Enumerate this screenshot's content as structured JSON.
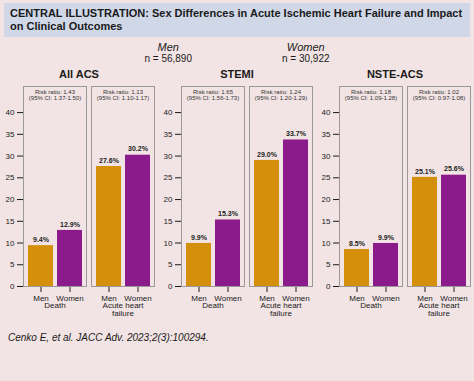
{
  "title": "CENTRAL ILLUSTRATION: Sex Differences in Acute Ischemic Heart Failure and Impact on Clinical Outcomes",
  "annotations": [
    "Men",
    "n = 56,890",
    "Women",
    "n = 30,922",
    "Cenko E, et al. JACC Adv. 2023;2(3):100294."
  ],
  "chart_data": [
    {
      "type": "bar",
      "title": "All ACS",
      "categories": [
        "Death",
        "Acute heart\nfailure"
      ],
      "series": [
        {
          "name": "Men",
          "color": "#D4900A",
          "values": [
            9.4,
            27.6
          ],
          "value_labels": [
            "9.4%",
            "27.6%"
          ]
        },
        {
          "name": "Women",
          "color": "#8B1A8B",
          "values": [
            12.9,
            30.2
          ],
          "value_labels": [
            "12.9%",
            "30.2%"
          ]
        }
      ],
      "annotations": [
        [
          "Risk ratio: 1.43",
          "(95% CI: 1.37-1.50)"
        ],
        [
          "Risk ratio: 1.13",
          "(95% CI: 1.10-1.17)"
        ]
      ],
      "ylim": [
        0,
        46
      ],
      "yticks": [
        0,
        5,
        10,
        15,
        20,
        25,
        30,
        35,
        40
      ],
      "grid": false,
      "data_labels": true
    },
    {
      "type": "bar",
      "title": "STEMI",
      "categories": [
        "Death",
        "Acute heart\nfailure"
      ],
      "series": [
        {
          "name": "Men",
          "color": "#D4900A",
          "values": [
            9.9,
            29.0
          ],
          "value_labels": [
            "9.9%",
            "29.0%"
          ]
        },
        {
          "name": "Women",
          "color": "#8B1A8B",
          "values": [
            15.3,
            33.7
          ],
          "value_labels": [
            "15.3%",
            "33.7%"
          ]
        }
      ],
      "annotations": [
        [
          "Risk ratio: 1.65",
          "(95% CI: 1.56-1.73)"
        ],
        [
          "Risk ratio: 1.24",
          "(95% CI: 1.20-1.29)"
        ]
      ],
      "ylim": [
        0,
        46
      ],
      "yticks": [
        0,
        5,
        10,
        15,
        20,
        25,
        30,
        35,
        40
      ],
      "grid": false,
      "data_labels": true
    },
    {
      "type": "bar",
      "title": "NSTE-ACS",
      "categories": [
        "Death",
        "Acute heart\nfailure"
      ],
      "series": [
        {
          "name": "Men",
          "color": "#D4900A",
          "values": [
            8.5,
            25.1
          ],
          "value_labels": [
            "8.5%",
            "25.1%"
          ]
        },
        {
          "name": "Women",
          "color": "#8B1A8B",
          "values": [
            9.9,
            25.6
          ],
          "value_labels": [
            "9.9%",
            "25.6%"
          ]
        }
      ],
      "annotations": [
        [
          "Risk ratio: 1.18",
          "(95% CI: 1.09-1.28)"
        ],
        [
          "Risk ratio: 1.02",
          "(95% CI: 0.97-1.08)"
        ]
      ],
      "ylim": [
        0,
        46
      ],
      "yticks": [
        0,
        5,
        10,
        15,
        20,
        25,
        30,
        35,
        40
      ],
      "grid": false,
      "data_labels": true
    }
  ]
}
